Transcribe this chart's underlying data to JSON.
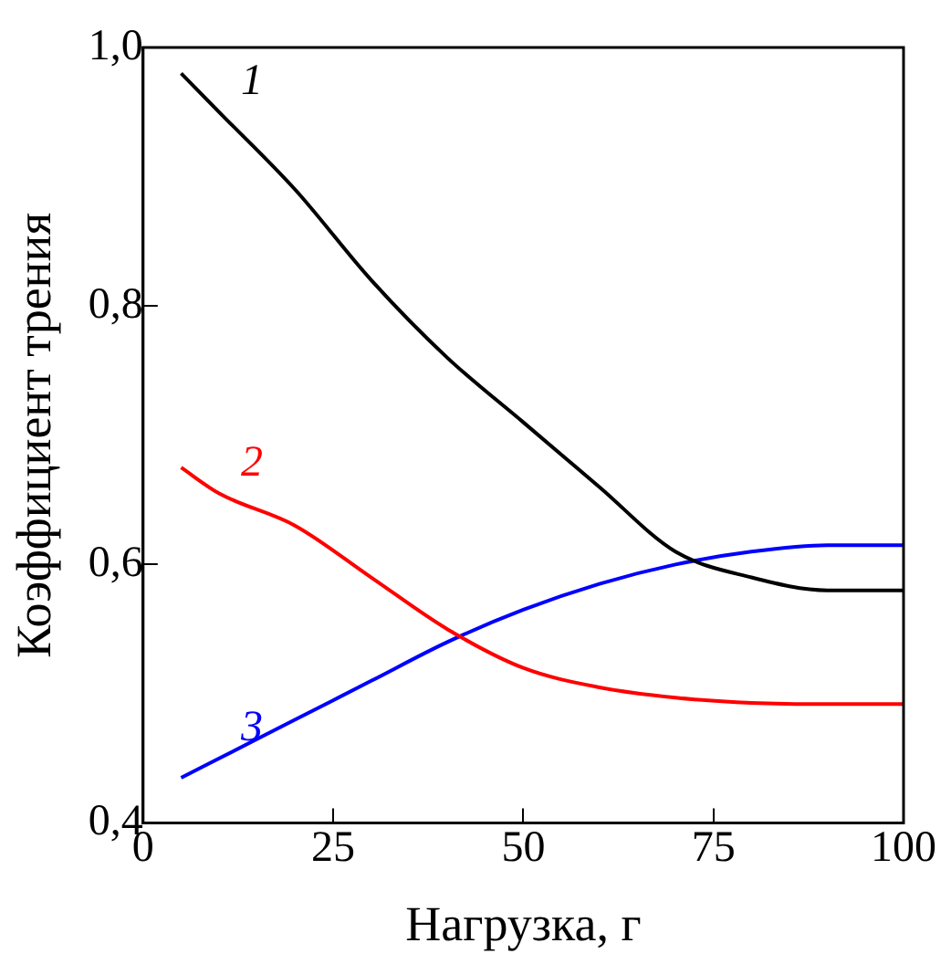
{
  "chart_data": {
    "type": "line",
    "xlabel": "Нагрузка, г",
    "ylabel": "Коэффициент трения",
    "x": [
      5,
      10,
      20,
      30,
      40,
      50,
      60,
      70,
      80,
      90,
      100
    ],
    "xlim": [
      0,
      100
    ],
    "xticks": [
      0,
      25,
      50,
      75,
      100
    ],
    "ylim": [
      0.4,
      1.0
    ],
    "yticks": [
      {
        "value": 0.4,
        "label": "0,4"
      },
      {
        "value": 0.6,
        "label": "0,6"
      },
      {
        "value": 0.8,
        "label": "0,8"
      },
      {
        "value": 1.0,
        "label": "1,0"
      }
    ],
    "grid": false,
    "legend": false,
    "marker": "none",
    "line_style": "solid",
    "series": [
      {
        "name": "1",
        "color": "#000000",
        "values": [
          0.98,
          0.95,
          0.89,
          0.82,
          0.76,
          0.71,
          0.66,
          0.61,
          0.59,
          0.58,
          0.58
        ]
      },
      {
        "name": "2",
        "color": "#ff0000",
        "values": [
          0.675,
          0.655,
          0.63,
          0.59,
          0.55,
          0.52,
          0.505,
          0.497,
          0.493,
          0.492,
          0.492
        ]
      },
      {
        "name": "3",
        "color": "#0000ff",
        "values": [
          0.435,
          0.45,
          0.48,
          0.51,
          0.54,
          0.565,
          0.585,
          0.6,
          0.61,
          0.615,
          0.615
        ]
      }
    ]
  }
}
